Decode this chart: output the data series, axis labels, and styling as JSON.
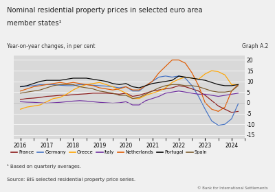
{
  "title_line1": "Nominal residential property prices in selected euro area",
  "title_line2": "member states¹",
  "subtitle": "Year-on-year changes, in per cent",
  "graph_label": "Graph A.2",
  "footnote1": "¹ Based on quarterly averages.",
  "footnote2": "Source: BIS selected residential property price series.",
  "copyright": "© Bank for International Settlements",
  "xlim": [
    2015.75,
    2024.5
  ],
  "ylim": [
    -17,
    22
  ],
  "yticks": [
    -15,
    -10,
    -5,
    0,
    5,
    10,
    15,
    20
  ],
  "xticks": [
    2016,
    2017,
    2018,
    2019,
    2020,
    2021,
    2022,
    2023,
    2024
  ],
  "background_color": "#d9d9d9",
  "fig_bg": "#f0f0f0",
  "series": {
    "France": {
      "color": "#8b1a1a",
      "x": [
        2016.0,
        2016.25,
        2016.5,
        2016.75,
        2017.0,
        2017.25,
        2017.5,
        2017.75,
        2018.0,
        2018.25,
        2018.5,
        2018.75,
        2019.0,
        2019.25,
        2019.5,
        2019.75,
        2020.0,
        2020.25,
        2020.5,
        2020.75,
        2021.0,
        2021.25,
        2021.5,
        2021.75,
        2022.0,
        2022.25,
        2022.5,
        2022.75,
        2023.0,
        2023.25,
        2023.5,
        2023.75,
        2024.0,
        2024.25
      ],
      "y": [
        1.5,
        2.0,
        2.2,
        2.5,
        3.0,
        3.2,
        3.5,
        3.5,
        3.8,
        4.0,
        4.2,
        4.5,
        4.5,
        4.5,
        4.3,
        4.0,
        4.5,
        3.0,
        3.5,
        4.5,
        5.5,
        6.0,
        6.5,
        7.0,
        8.0,
        7.5,
        6.5,
        5.5,
        3.5,
        1.0,
        -1.5,
        -3.0,
        -4.5,
        -4.0
      ]
    },
    "Germany": {
      "color": "#4472c4",
      "x": [
        2016.0,
        2016.25,
        2016.5,
        2016.75,
        2017.0,
        2017.25,
        2017.5,
        2017.75,
        2018.0,
        2018.25,
        2018.5,
        2018.75,
        2019.0,
        2019.25,
        2019.5,
        2019.75,
        2020.0,
        2020.25,
        2020.5,
        2020.75,
        2021.0,
        2021.25,
        2021.5,
        2021.75,
        2022.0,
        2022.25,
        2022.5,
        2022.75,
        2023.0,
        2023.25,
        2023.5,
        2023.75,
        2024.0,
        2024.25
      ],
      "y": [
        7.5,
        7.8,
        8.0,
        8.5,
        8.5,
        8.5,
        8.2,
        8.0,
        8.0,
        8.5,
        8.5,
        8.2,
        8.0,
        7.8,
        7.5,
        7.0,
        7.5,
        5.5,
        5.5,
        8.0,
        10.0,
        12.0,
        12.5,
        12.0,
        12.5,
        11.5,
        8.0,
        3.0,
        -3.0,
        -8.5,
        -10.5,
        -10.0,
        -7.5,
        -0.5
      ]
    },
    "Greece": {
      "color": "#ffa500",
      "x": [
        2016.0,
        2016.25,
        2016.5,
        2016.75,
        2017.0,
        2017.25,
        2017.5,
        2017.75,
        2018.0,
        2018.25,
        2018.5,
        2018.75,
        2019.0,
        2019.25,
        2019.5,
        2019.75,
        2020.0,
        2020.25,
        2020.5,
        2020.75,
        2021.0,
        2021.25,
        2021.5,
        2021.75,
        2022.0,
        2022.25,
        2022.5,
        2022.75,
        2023.0,
        2023.25,
        2023.5,
        2023.75,
        2024.0,
        2024.25
      ],
      "y": [
        -3.0,
        -2.0,
        -1.5,
        -1.0,
        0.5,
        2.0,
        2.5,
        4.0,
        6.0,
        7.5,
        8.5,
        9.0,
        9.5,
        8.5,
        7.5,
        6.0,
        4.5,
        2.0,
        2.0,
        3.5,
        4.5,
        5.5,
        7.0,
        9.5,
        11.0,
        12.0,
        11.5,
        11.0,
        13.5,
        15.0,
        14.5,
        13.0,
        8.5,
        8.5
      ]
    },
    "Italy": {
      "color": "#7030a0",
      "x": [
        2016.0,
        2016.25,
        2016.5,
        2016.75,
        2017.0,
        2017.25,
        2017.5,
        2017.75,
        2018.0,
        2018.25,
        2018.5,
        2018.75,
        2019.0,
        2019.25,
        2019.5,
        2019.75,
        2020.0,
        2020.25,
        2020.5,
        2020.75,
        2021.0,
        2021.25,
        2021.5,
        2021.75,
        2022.0,
        2022.25,
        2022.5,
        2022.75,
        2023.0,
        2023.25,
        2023.5,
        2023.75,
        2024.0,
        2024.25
      ],
      "y": [
        0.5,
        0.3,
        0.2,
        0.0,
        -0.2,
        0.0,
        0.2,
        0.5,
        0.8,
        1.0,
        0.8,
        0.5,
        0.2,
        0.0,
        -0.2,
        0.0,
        0.5,
        -1.0,
        -1.0,
        1.0,
        2.0,
        3.0,
        4.5,
        5.0,
        5.5,
        5.0,
        4.5,
        4.0,
        4.0,
        3.5,
        3.0,
        3.5,
        4.0,
        4.5
      ]
    },
    "Netherlands": {
      "color": "#e05a00",
      "x": [
        2016.0,
        2016.25,
        2016.5,
        2016.75,
        2017.0,
        2017.25,
        2017.5,
        2017.75,
        2018.0,
        2018.25,
        2018.5,
        2018.75,
        2019.0,
        2019.25,
        2019.5,
        2019.75,
        2020.0,
        2020.25,
        2020.5,
        2020.75,
        2021.0,
        2021.25,
        2021.5,
        2021.75,
        2022.0,
        2022.25,
        2022.5,
        2022.75,
        2023.0,
        2023.25,
        2023.5,
        2023.75,
        2024.0,
        2024.25
      ],
      "y": [
        5.5,
        6.5,
        7.5,
        8.0,
        8.5,
        9.0,
        9.5,
        9.0,
        9.5,
        9.0,
        8.5,
        8.0,
        7.0,
        6.5,
        6.0,
        6.5,
        7.5,
        6.0,
        6.0,
        8.0,
        10.0,
        14.0,
        17.0,
        20.0,
        20.0,
        18.5,
        14.0,
        8.0,
        0.0,
        -3.0,
        -4.0,
        -2.0,
        5.5,
        8.5
      ]
    },
    "Portugal": {
      "color": "#000000",
      "x": [
        2016.0,
        2016.25,
        2016.5,
        2016.75,
        2017.0,
        2017.25,
        2017.5,
        2017.75,
        2018.0,
        2018.25,
        2018.5,
        2018.75,
        2019.0,
        2019.25,
        2019.5,
        2019.75,
        2020.0,
        2020.25,
        2020.5,
        2020.75,
        2021.0,
        2021.25,
        2021.5,
        2021.75,
        2022.0,
        2022.25,
        2022.5,
        2022.75,
        2023.0,
        2023.25,
        2023.5,
        2023.75,
        2024.0,
        2024.25
      ],
      "y": [
        7.5,
        8.0,
        9.0,
        10.0,
        10.5,
        10.5,
        10.5,
        11.0,
        11.5,
        11.5,
        11.5,
        11.0,
        10.5,
        10.0,
        9.0,
        8.5,
        9.0,
        7.5,
        7.0,
        8.0,
        9.0,
        9.5,
        10.0,
        10.5,
        12.5,
        12.0,
        11.5,
        11.0,
        10.5,
        9.5,
        8.5,
        8.0,
        8.0,
        8.5
      ]
    },
    "Spain": {
      "color": "#7b5c2e",
      "x": [
        2016.0,
        2016.25,
        2016.5,
        2016.75,
        2017.0,
        2017.25,
        2017.5,
        2017.75,
        2018.0,
        2018.25,
        2018.5,
        2018.75,
        2019.0,
        2019.25,
        2019.5,
        2019.75,
        2020.0,
        2020.25,
        2020.5,
        2020.75,
        2021.0,
        2021.25,
        2021.5,
        2021.75,
        2022.0,
        2022.25,
        2022.5,
        2022.75,
        2023.0,
        2023.25,
        2023.5,
        2023.75,
        2024.0,
        2024.25
      ],
      "y": [
        4.5,
        5.0,
        5.5,
        6.0,
        7.0,
        8.0,
        8.5,
        8.5,
        8.5,
        7.5,
        7.0,
        6.5,
        5.5,
        5.0,
        4.5,
        3.5,
        3.5,
        2.0,
        2.5,
        4.0,
        5.5,
        7.0,
        8.0,
        8.5,
        8.5,
        8.0,
        8.0,
        7.5,
        6.5,
        5.5,
        5.0,
        5.0,
        5.5,
        8.0
      ]
    }
  }
}
